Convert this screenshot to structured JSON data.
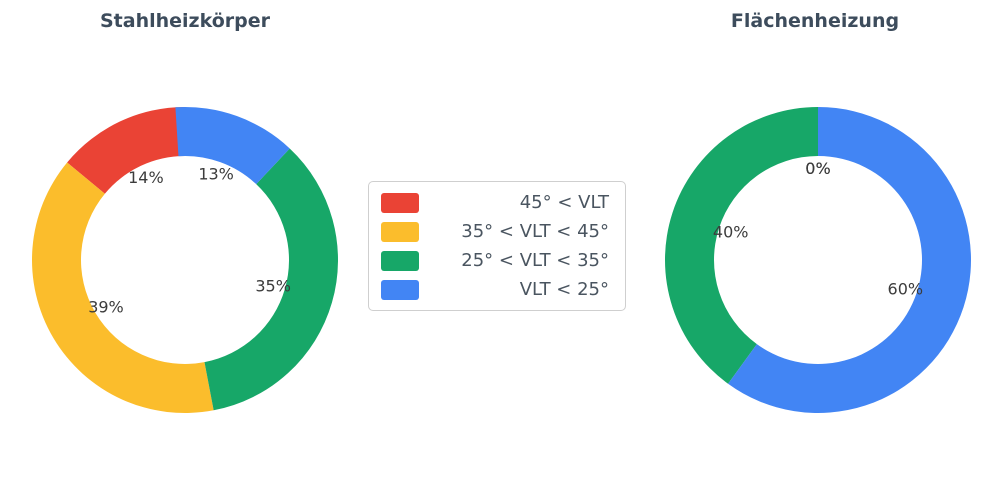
{
  "figure": {
    "background": "#ffffff",
    "title_color": "#3d4c5c",
    "label_color": "#3c3c3c"
  },
  "legend": {
    "position": "center",
    "items": [
      {
        "id": "vlt-gt-45",
        "label": "45° < VLT",
        "color": "#EA4335"
      },
      {
        "id": "vlt-35-45",
        "label": "35° < VLT < 45°",
        "color": "#FBBD2C"
      },
      {
        "id": "vlt-25-35",
        "label": "25° < VLT < 35°",
        "color": "#17A768"
      },
      {
        "id": "vlt-lt-25",
        "label": "VLT < 25°",
        "color": "#4285F4"
      }
    ]
  },
  "chart_data": [
    {
      "type": "pie",
      "title": "Stahlheizkörper",
      "labels": [
        "45° < VLT",
        "35° < VLT < 45°",
        "25° < VLT < 35°",
        "VLT < 25°"
      ],
      "segment_ids": [
        "vlt-gt-45",
        "vlt-35-45",
        "vlt-25-35",
        "vlt-lt-25"
      ],
      "values": [
        14,
        39,
        35,
        13
      ],
      "pct_labels": [
        "14%",
        "39%",
        "35%",
        "13%"
      ],
      "colors": [
        "#EA4335",
        "#FBBD2C",
        "#17A768",
        "#4285F4"
      ],
      "start_angle": 90,
      "direction": "counterclockwise",
      "hole": 0.68
    },
    {
      "type": "pie",
      "title": "Flächenheizung",
      "labels": [
        "45° < VLT",
        "35° < VLT < 45°",
        "25° < VLT < 35°",
        "VLT < 25°"
      ],
      "segment_ids": [
        "vlt-gt-45",
        "vlt-35-45",
        "vlt-25-35",
        "vlt-lt-25"
      ],
      "values": [
        0,
        0,
        40,
        60
      ],
      "pct_labels": [
        "0%",
        "0%",
        "40%",
        "60%"
      ],
      "colors": [
        "#EA4335",
        "#FBBD2C",
        "#17A768",
        "#4285F4"
      ],
      "start_angle": 90,
      "direction": "counterclockwise",
      "hole": 0.68
    }
  ]
}
